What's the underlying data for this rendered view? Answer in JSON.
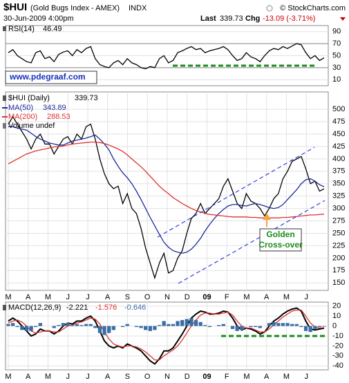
{
  "header": {
    "symbol": "$HUI",
    "name": "(Gold Bugs Index - AMEX)",
    "exchange": "INDX",
    "source": "© StockCharts.com",
    "date": "30-Jun-2009 4:00pm",
    "last_label": "Last",
    "last": "339.73",
    "chg_label": "Chg",
    "chg": "-13.09 (-3.71%)"
  },
  "chart_data": [
    {
      "type": "line",
      "annotation": "www.pdegraaf.com",
      "xlim": [
        -0.6,
        69.9
      ],
      "ylim": [
        0,
        100
      ],
      "yticks": [
        10,
        30,
        50,
        70,
        90
      ],
      "reference_lines": [
        30,
        70
      ],
      "grid": true,
      "x": [
        0,
        1,
        2,
        3,
        4,
        5,
        6,
        7,
        8,
        9,
        10,
        11,
        12,
        13,
        14,
        15,
        16,
        17,
        18,
        19,
        20,
        21,
        22,
        23,
        24,
        25,
        26,
        27,
        28,
        29,
        30,
        31,
        32,
        33,
        34,
        35,
        36,
        37,
        38,
        39,
        40,
        41,
        42,
        43,
        44,
        45,
        46,
        47,
        48,
        49,
        50,
        51,
        52,
        53,
        54,
        55,
        56,
        57,
        58,
        59,
        60,
        61,
        62,
        63,
        64,
        65,
        66,
        67,
        68,
        69
      ],
      "series": [
        {
          "name": "RSI(14)",
          "color": "#000000",
          "values": [
            55,
            60,
            50,
            45,
            40,
            38,
            55,
            58,
            45,
            48,
            40,
            52,
            56,
            58,
            50,
            60,
            55,
            62,
            65,
            45,
            35,
            32,
            30,
            38,
            42,
            35,
            45,
            38,
            35,
            30,
            28,
            32,
            30,
            45,
            50,
            38,
            42,
            55,
            58,
            62,
            65,
            60,
            62,
            55,
            58,
            60,
            62,
            65,
            60,
            50,
            42,
            45,
            55,
            48,
            45,
            40,
            50,
            58,
            62,
            60,
            65,
            62,
            66,
            70,
            68,
            55,
            45,
            50,
            42,
            46.49
          ]
        }
      ]
    },
    {
      "type": "line",
      "volume_label": "Volume undef",
      "annotations": [
        "Golden",
        "Cross-over"
      ],
      "xlim": [
        -0.6,
        69.9
      ],
      "ylim": [
        135,
        535
      ],
      "yticks": [
        150,
        175,
        200,
        225,
        250,
        275,
        300,
        325,
        350,
        375,
        400,
        425,
        450,
        475,
        500
      ],
      "grid": true,
      "xticks": [
        {
          "value": 0,
          "label": "M"
        },
        {
          "value": 4.34,
          "label": "A"
        },
        {
          "value": 8.68,
          "label": "M"
        },
        {
          "value": 13.02,
          "label": "J"
        },
        {
          "value": 17.36,
          "label": "J"
        },
        {
          "value": 21.7,
          "label": "A"
        },
        {
          "value": 26.04,
          "label": "S"
        },
        {
          "value": 30.38,
          "label": "O"
        },
        {
          "value": 34.72,
          "label": "N"
        },
        {
          "value": 39.06,
          "label": "D"
        },
        {
          "value": 43.4,
          "label": "09"
        },
        {
          "value": 47.74,
          "label": "F"
        },
        {
          "value": 52.08,
          "label": "M"
        },
        {
          "value": 56.42,
          "label": "A"
        },
        {
          "value": 60.76,
          "label": "M"
        },
        {
          "value": 65.1,
          "label": "J"
        }
      ],
      "x": [
        0,
        1,
        2,
        3,
        4,
        5,
        6,
        7,
        8,
        9,
        10,
        11,
        12,
        13,
        14,
        15,
        16,
        17,
        18,
        19,
        20,
        21,
        22,
        23,
        24,
        25,
        26,
        27,
        28,
        29,
        30,
        31,
        32,
        33,
        34,
        35,
        36,
        37,
        38,
        39,
        40,
        41,
        42,
        43,
        44,
        45,
        46,
        47,
        48,
        49,
        50,
        51,
        52,
        53,
        54,
        55,
        56,
        57,
        58,
        59,
        60,
        61,
        62,
        63,
        64,
        65,
        66,
        67,
        68,
        69
      ],
      "series": [
        {
          "name": "$HUI (Daily)",
          "color": "#000000",
          "values": [
            470,
            485,
            470,
            455,
            440,
            420,
            440,
            450,
            430,
            430,
            410,
            425,
            440,
            445,
            430,
            450,
            440,
            465,
            470,
            440,
            400,
            370,
            350,
            340,
            345,
            310,
            330,
            300,
            290,
            260,
            220,
            190,
            160,
            190,
            210,
            170,
            175,
            200,
            215,
            250,
            280,
            290,
            310,
            290,
            300,
            310,
            320,
            345,
            360,
            335,
            310,
            300,
            330,
            315,
            310,
            300,
            285,
            300,
            320,
            330,
            360,
            375,
            395,
            400,
            405,
            380,
            350,
            355,
            335,
            339.73
          ]
        },
        {
          "name": "MA(50)",
          "color": "#1a2a9a",
          "values": [
            465,
            465,
            462,
            460,
            458,
            452,
            445,
            440,
            436,
            432,
            430,
            428,
            428,
            432,
            436,
            438,
            440,
            442,
            445,
            448,
            440,
            430,
            418,
            400,
            385,
            372,
            362,
            350,
            335,
            318,
            300,
            282,
            265,
            248,
            232,
            222,
            215,
            212,
            210,
            212,
            218,
            228,
            240,
            255,
            268,
            280,
            290,
            298,
            305,
            308,
            308,
            306,
            305,
            308,
            310,
            308,
            305,
            302,
            300,
            302,
            308,
            318,
            328,
            338,
            350,
            358,
            360,
            355,
            348,
            343.89
          ]
        },
        {
          "name": "MA(200)",
          "color": "#e03030",
          "values": [
            390,
            395,
            400,
            405,
            410,
            413,
            416,
            418,
            420,
            422,
            424,
            425,
            426,
            428,
            430,
            431,
            432,
            433,
            434,
            434,
            433,
            431,
            428,
            424,
            420,
            415,
            408,
            400,
            392,
            384,
            375,
            365,
            355,
            345,
            337,
            330,
            322,
            316,
            310,
            305,
            300,
            296,
            293,
            290,
            288,
            287,
            286,
            285,
            284,
            283,
            283,
            283,
            283,
            282,
            282,
            281,
            281,
            281,
            281,
            281,
            282,
            282,
            283,
            284,
            285,
            286,
            287,
            287,
            288,
            288.53
          ]
        }
      ]
    },
    {
      "type": "line",
      "xlim": [
        -0.6,
        69.9
      ],
      "ylim": [
        -44,
        24
      ],
      "yticks": [
        -40,
        -30,
        -20,
        -10,
        0,
        10,
        20
      ],
      "grid": true,
      "xticks": [
        {
          "value": 0,
          "label": "M"
        },
        {
          "value": 4.34,
          "label": "A"
        },
        {
          "value": 8.68,
          "label": "M"
        },
        {
          "value": 13.02,
          "label": "J"
        },
        {
          "value": 17.36,
          "label": "J"
        },
        {
          "value": 21.7,
          "label": "A"
        },
        {
          "value": 26.04,
          "label": "S"
        },
        {
          "value": 30.38,
          "label": "O"
        },
        {
          "value": 34.72,
          "label": "N"
        },
        {
          "value": 39.06,
          "label": "D"
        },
        {
          "value": 43.4,
          "label": "09"
        },
        {
          "value": 47.74,
          "label": "F"
        },
        {
          "value": 52.08,
          "label": "M"
        },
        {
          "value": 56.42,
          "label": "A"
        },
        {
          "value": 60.76,
          "label": "M"
        },
        {
          "value": 65.1,
          "label": "J"
        }
      ],
      "x": [
        0,
        1,
        2,
        3,
        4,
        5,
        6,
        7,
        8,
        9,
        10,
        11,
        12,
        13,
        14,
        15,
        16,
        17,
        18,
        19,
        20,
        21,
        22,
        23,
        24,
        25,
        26,
        27,
        28,
        29,
        30,
        31,
        32,
        33,
        34,
        35,
        36,
        37,
        38,
        39,
        40,
        41,
        42,
        43,
        44,
        45,
        46,
        47,
        48,
        49,
        50,
        51,
        52,
        53,
        54,
        55,
        56,
        57,
        58,
        59,
        60,
        61,
        62,
        63,
        64,
        65,
        66,
        67,
        68,
        69
      ],
      "series": [
        {
          "name": "MACD(12,26,9)",
          "color": "#000000",
          "values": [
            5,
            8,
            5,
            0,
            -5,
            -10,
            -8,
            -3,
            -5,
            -5,
            -8,
            -5,
            0,
            3,
            2,
            5,
            5,
            8,
            10,
            5,
            -5,
            -15,
            -20,
            -22,
            -20,
            -22,
            -18,
            -20,
            -22,
            -25,
            -30,
            -35,
            -38,
            -33,
            -25,
            -25,
            -22,
            -15,
            -8,
            0,
            8,
            12,
            15,
            14,
            12,
            12,
            13,
            15,
            14,
            8,
            0,
            -4,
            -2,
            -3,
            -5,
            -8,
            -6,
            0,
            5,
            8,
            12,
            15,
            17,
            18,
            15,
            5,
            -3,
            -4,
            -3,
            -2.221
          ]
        },
        {
          "color": "#e03030",
          "values": [
            3,
            5,
            6,
            4,
            0,
            -5,
            -7,
            -6,
            -5,
            -5,
            -6,
            -6,
            -3,
            0,
            1,
            3,
            4,
            6,
            8,
            7,
            2,
            -6,
            -13,
            -18,
            -20,
            -21,
            -20,
            -20,
            -21,
            -23,
            -26,
            -30,
            -34,
            -34,
            -30,
            -27,
            -24,
            -20,
            -14,
            -7,
            0,
            6,
            11,
            13,
            13,
            12,
            12,
            13,
            14,
            11,
            5,
            0,
            -2,
            -2,
            -4,
            -6,
            -6,
            -3,
            1,
            5,
            9,
            12,
            15,
            16,
            16,
            10,
            3,
            -1,
            -2,
            -1.576
          ]
        },
        {
          "type": "bar",
          "color": "#3a6ea5",
          "values": [
            2,
            3,
            -1,
            -4,
            -5,
            -5,
            -1,
            3,
            0,
            0,
            -2,
            1,
            3,
            3,
            1,
            2,
            1,
            2,
            2,
            -2,
            -7,
            -9,
            -7,
            -4,
            0,
            -1,
            2,
            0,
            -1,
            -2,
            -4,
            -5,
            -4,
            1,
            5,
            2,
            2,
            5,
            6,
            7,
            8,
            6,
            4,
            1,
            -1,
            0,
            1,
            2,
            0,
            -3,
            -5,
            -4,
            0,
            -1,
            -1,
            -2,
            0,
            3,
            4,
            3,
            3,
            3,
            2,
            2,
            -1,
            -5,
            -6,
            -3,
            -1,
            -0.646
          ]
        }
      ]
    }
  ]
}
